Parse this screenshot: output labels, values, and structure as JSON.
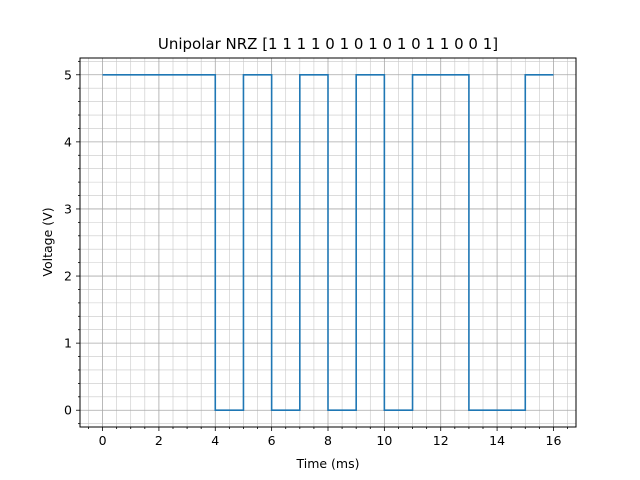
{
  "chart_data": {
    "type": "line",
    "step": "post",
    "title": "Unipolar NRZ [1 1 1 1 0 1 0 1 0 1 0 1 1 0 0 1]",
    "xlabel": "Time (ms)",
    "ylabel": "Voltage (V)",
    "xlim": [
      -0.8,
      16.8
    ],
    "ylim": [
      -0.25,
      5.25
    ],
    "xticks": [
      0,
      2,
      4,
      6,
      8,
      10,
      12,
      14,
      16
    ],
    "yticks": [
      0,
      1,
      2,
      3,
      4,
      5
    ],
    "minor_grid": true,
    "grid": true,
    "color": "#1f77b4",
    "bits": [
      1,
      1,
      1,
      1,
      0,
      1,
      0,
      1,
      0,
      1,
      0,
      1,
      1,
      0,
      0,
      1
    ],
    "high_voltage": 5,
    "low_voltage": 0,
    "x": [
      0,
      1,
      2,
      3,
      4,
      5,
      6,
      7,
      8,
      9,
      10,
      11,
      12,
      13,
      14,
      15,
      16
    ],
    "y": [
      5,
      5,
      5,
      5,
      0,
      5,
      0,
      5,
      0,
      5,
      0,
      5,
      5,
      0,
      0,
      5,
      5
    ]
  }
}
